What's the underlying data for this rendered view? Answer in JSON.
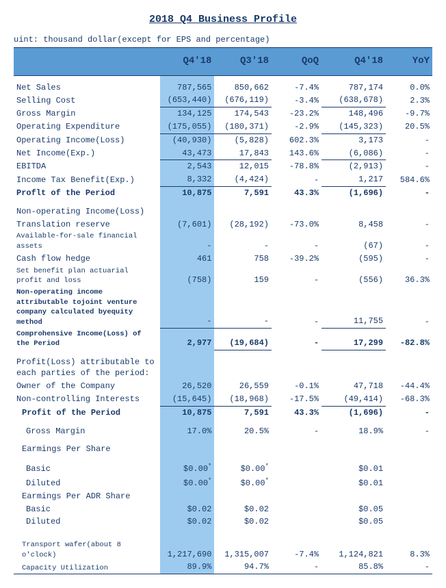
{
  "title": "2018 Q4 Business Profile",
  "unit_note": "uint: thousand dollar(except for EPS and percentage)",
  "headers": [
    "",
    "Q4'18",
    "Q3'18",
    "QoQ",
    "Q4'18",
    "YoY"
  ],
  "rows": [
    {
      "label": "Net Sales",
      "c1": "787,565",
      "c2": "850,662",
      "c3": "-7.4%",
      "c4": "787,174",
      "c5": "0.0%",
      "sp_top": true
    },
    {
      "label": "Selling Cost",
      "c1": "(653,440)",
      "c2": "(676,119)",
      "c3": "-3.4%",
      "c4": "(638,678)",
      "c5": "2.3%",
      "u": [
        "c1",
        "c2",
        "c4"
      ]
    },
    {
      "label": "Gross Margin",
      "c1": "134,125",
      "c2": "174,543",
      "c3": "-23.2%",
      "c4": "148,496",
      "c5": "-9.7%"
    },
    {
      "label": "Operating Expenditure",
      "c1": "(175,055)",
      "c2": "(180,371)",
      "c3": "-2.9%",
      "c4": "(145,323)",
      "c5": "20.5%",
      "u": [
        "c1",
        "c2",
        "c4"
      ]
    },
    {
      "label": "Operating Income(Loss)",
      "c1": "(40,930)",
      "c2": "(5,828)",
      "c3": "602.3%",
      "c4": "3,173",
      "c5": "-"
    },
    {
      "label": "Net Income(Exp.)",
      "c1": "43,473",
      "c2": "17,843",
      "c3": "143.6%",
      "c4": "(6,086)",
      "c5": "-",
      "u": [
        "c1",
        "c2",
        "c4"
      ]
    },
    {
      "label": "EBITDA",
      "c1": "2,543",
      "c2": "12,015",
      "c3": "-78.8%",
      "c4": "(2,913)",
      "c5": "-"
    },
    {
      "label": "Income Tax Benefit(Exp.)",
      "c1": "8,332",
      "c2": "(4,424)",
      "c3": "-",
      "c4": "1,217",
      "c5": "584.6%",
      "u": [
        "c1",
        "c2",
        "c4"
      ]
    },
    {
      "label": "Proflt of the Period",
      "c1": "10,875",
      "c2": "7,591",
      "c3": "43.3%",
      "c4": "(1,696)",
      "c5": "-",
      "b": true
    },
    {
      "spacer": true
    },
    {
      "label": "Non-operating Income(Loss)",
      "c1": "",
      "c2": "",
      "c3": "",
      "c4": "",
      "c5": ""
    },
    {
      "label": "Translation reserve",
      "c1": "(7,601)",
      "c2": "(28,192)",
      "c3": "-73.0%",
      "c4": "8,458",
      "c5": "-"
    },
    {
      "label": "Available-for-sale financial assets",
      "c1": "-",
      "c2": "-",
      "c3": "-",
      "c4": "(67)",
      "c5": "-",
      "sm": true
    },
    {
      "label": "Cash flow hedge",
      "c1": "461",
      "c2": "758",
      "c3": "-39.2%",
      "c4": "(595)",
      "c5": "-"
    },
    {
      "label": "Set benefit plan actuarial profit and loss",
      "c1": "(758)",
      "c2": "159",
      "c3": "-",
      "c4": "(556)",
      "c5": "36.3%",
      "sm": true
    },
    {
      "label": "Non-operating income attributable tojoint venture company calculated byequity method",
      "c1": "-",
      "c2": "-",
      "c3": "-",
      "c4": "11,755",
      "c5": "-",
      "sm": true,
      "b_label": true,
      "u": [
        "c1",
        "c2",
        "c4"
      ]
    },
    {
      "label": "Comprohensive Income(Loss) of the Period",
      "c1": "2,977",
      "c2": "(19,684)",
      "c3": "-",
      "c4": "17,299",
      "c5": "-82.8%",
      "sm": true,
      "b": true,
      "u": [
        "c2",
        "c4"
      ]
    },
    {
      "spacer": true
    },
    {
      "label": "Profit(Loss) attributable to each parties of the period:",
      "c1": "",
      "c2": "",
      "c3": "",
      "c4": "",
      "c5": ""
    },
    {
      "label": "Owner of the Company",
      "c1": "26,520",
      "c2": "26,559",
      "c3": "-0.1%",
      "c4": "47,718",
      "c5": "-44.4%"
    },
    {
      "label": "Non-controlling Interests",
      "c1": "(15,645)",
      "c2": "(18,968)",
      "c3": "-17.5%",
      "c4": "(49,414)",
      "c5": "-68.3%",
      "u": [
        "c1",
        "c2",
        "c4"
      ]
    },
    {
      "label": "Profit of the Period",
      "c1": "10,875",
      "c2": "7,591",
      "c3": "43.3%",
      "c4": "(1,696)",
      "c5": "-",
      "b": true,
      "indent": 1
    },
    {
      "spacer": true
    },
    {
      "label": "Gross Margin",
      "c1": "17.0%",
      "c2": "20.5%",
      "c3": "-",
      "c4": "18.9%",
      "c5": "-",
      "indent": 2
    },
    {
      "spacer": true
    },
    {
      "label": "Earmings Per Share",
      "c1": "",
      "c2": "",
      "c3": "",
      "c4": "",
      "c5": "",
      "indent": 1
    },
    {
      "spacer": true
    },
    {
      "label": "Basic",
      "c1": "$0.00",
      "c2": "$0.00",
      "c3": "",
      "c4": "$0.01",
      "c5": "",
      "indent": 2,
      "star": [
        "c1",
        "c2"
      ]
    },
    {
      "label": "Diluted",
      "c1": "$0.00",
      "c2": "$0.00",
      "c3": "",
      "c4": "$0.01",
      "c5": "",
      "indent": 2,
      "star": [
        "c1",
        "c2"
      ]
    },
    {
      "label": "Earmings Per ADR Share",
      "c1": "",
      "c2": "",
      "c3": "",
      "c4": "",
      "c5": "",
      "indent": 1
    },
    {
      "label": "Basic",
      "c1": "$0.02",
      "c2": "$0.02",
      "c3": "",
      "c4": "$0.05",
      "c5": "",
      "indent": 2
    },
    {
      "label": "Diluted",
      "c1": "$0.02",
      "c2": "$0.02",
      "c3": "",
      "c4": "$0.05",
      "c5": "",
      "indent": 2
    },
    {
      "spacer": true
    },
    {
      "spacer": true
    },
    {
      "label": "Transport wafer(about 8 o'clock)",
      "c1": "1,217,690",
      "c2": "1,315,007",
      "c3": "-7.4%",
      "c4": "1,124,821",
      "c5": "8.3%",
      "sm": true,
      "indent": 1
    },
    {
      "label": "Capacity Utilization",
      "c1": "89.9%",
      "c2": "94.7%",
      "c3": "-",
      "c4": "85.8%",
      "c5": "-",
      "sm": true,
      "indent": 1,
      "last": true
    }
  ]
}
